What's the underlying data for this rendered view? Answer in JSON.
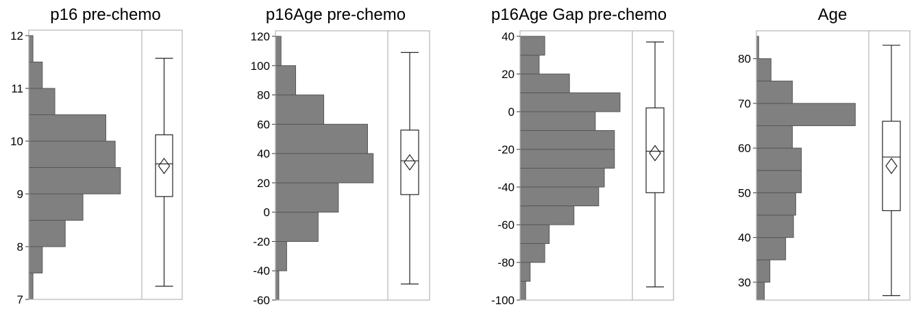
{
  "chart_data": [
    {
      "type": "histogram_boxplot",
      "title": "p16 pre-chemo",
      "ylim": [
        7,
        12
      ],
      "yticks": [
        7,
        8,
        9,
        10,
        11,
        12
      ],
      "ytick_labels": [
        "7",
        "8",
        "9",
        "10",
        "11",
        "12"
      ],
      "bins": [
        {
          "from": 7.0,
          "to": 7.5,
          "width": 0.04
        },
        {
          "from": 7.5,
          "to": 8.0,
          "width": 0.13
        },
        {
          "from": 8.0,
          "to": 8.5,
          "width": 0.35
        },
        {
          "from": 8.5,
          "to": 9.0,
          "width": 0.52
        },
        {
          "from": 9.0,
          "to": 9.5,
          "width": 0.88
        },
        {
          "from": 9.5,
          "to": 10.0,
          "width": 0.83
        },
        {
          "from": 10.0,
          "to": 10.5,
          "width": 0.74
        },
        {
          "from": 10.5,
          "to": 11.0,
          "width": 0.25
        },
        {
          "from": 11.0,
          "to": 11.5,
          "width": 0.13
        },
        {
          "from": 11.5,
          "to": 12.0,
          "width": 0.04
        }
      ],
      "box": {
        "whisker_low": 7.25,
        "q1": 8.95,
        "median": 9.57,
        "q3": 10.12,
        "whisker_high": 11.57,
        "mean": 9.53
      }
    },
    {
      "type": "histogram_boxplot",
      "title": "p16Age pre-chemo",
      "ylim": [
        -60,
        120
      ],
      "yticks": [
        -60,
        -40,
        -20,
        0,
        20,
        40,
        60,
        80,
        100,
        120
      ],
      "ytick_labels": [
        "-60",
        "-40",
        "-20",
        "0",
        "20",
        "40",
        "60",
        "80",
        "100",
        "120"
      ],
      "bins": [
        {
          "from": -60,
          "to": -40,
          "width": 0.03
        },
        {
          "from": -40,
          "to": -20,
          "width": 0.1
        },
        {
          "from": -20,
          "to": 0,
          "width": 0.38
        },
        {
          "from": 0,
          "to": 20,
          "width": 0.56
        },
        {
          "from": 20,
          "to": 40,
          "width": 0.87
        },
        {
          "from": 40,
          "to": 60,
          "width": 0.82
        },
        {
          "from": 60,
          "to": 80,
          "width": 0.43
        },
        {
          "from": 80,
          "to": 100,
          "width": 0.18
        },
        {
          "from": 100,
          "to": 120,
          "width": 0.05
        }
      ],
      "box": {
        "whisker_low": -49,
        "q1": 12,
        "median": 35,
        "q3": 56,
        "whisker_high": 109,
        "mean": 34
      }
    },
    {
      "type": "histogram_boxplot",
      "title": "p16Age Gap pre-chemo",
      "ylim": [
        -100,
        40
      ],
      "yticks": [
        -100,
        -80,
        -60,
        -40,
        -20,
        0,
        20,
        40
      ],
      "ytick_labels": [
        "-100",
        "-80",
        "-60",
        "-40",
        "-20",
        "0",
        "20",
        "40"
      ],
      "bins": [
        {
          "from": -100,
          "to": -90,
          "width": 0.05
        },
        {
          "from": -90,
          "to": -80,
          "width": 0.09
        },
        {
          "from": -80,
          "to": -70,
          "width": 0.22
        },
        {
          "from": -70,
          "to": -60,
          "width": 0.26
        },
        {
          "from": -60,
          "to": -50,
          "width": 0.48
        },
        {
          "from": -50,
          "to": -40,
          "width": 0.7
        },
        {
          "from": -40,
          "to": -30,
          "width": 0.75
        },
        {
          "from": -30,
          "to": -20,
          "width": 0.84
        },
        {
          "from": -20,
          "to": -10,
          "width": 0.84
        },
        {
          "from": -10,
          "to": 0,
          "width": 0.67
        },
        {
          "from": 0,
          "to": 10,
          "width": 0.89
        },
        {
          "from": 10,
          "to": 20,
          "width": 0.44
        },
        {
          "from": 20,
          "to": 30,
          "width": 0.17
        },
        {
          "from": 30,
          "to": 40,
          "width": 0.22
        }
      ],
      "box": {
        "whisker_low": -93,
        "q1": -43,
        "median": -21,
        "q3": 2,
        "whisker_high": 37,
        "mean": -22
      }
    },
    {
      "type": "histogram_boxplot",
      "title": "Age",
      "ylim": [
        26,
        85
      ],
      "yticks": [
        30,
        40,
        50,
        60,
        70,
        80
      ],
      "ytick_labels": [
        "30",
        "40",
        "50",
        "60",
        "70",
        "80"
      ],
      "bins": [
        {
          "from": 26,
          "to": 30,
          "width": 0.07
        },
        {
          "from": 30,
          "to": 35,
          "width": 0.12
        },
        {
          "from": 35,
          "to": 40,
          "width": 0.26
        },
        {
          "from": 40,
          "to": 45,
          "width": 0.33
        },
        {
          "from": 45,
          "to": 50,
          "width": 0.35
        },
        {
          "from": 50,
          "to": 55,
          "width": 0.4
        },
        {
          "from": 55,
          "to": 60,
          "width": 0.4
        },
        {
          "from": 60,
          "to": 65,
          "width": 0.32
        },
        {
          "from": 65,
          "to": 70,
          "width": 0.88
        },
        {
          "from": 70,
          "to": 75,
          "width": 0.32
        },
        {
          "from": 75,
          "to": 80,
          "width": 0.13
        },
        {
          "from": 80,
          "to": 85,
          "width": 0.02
        }
      ],
      "box": {
        "whisker_low": 27,
        "q1": 46,
        "median": 58,
        "q3": 66,
        "whisker_high": 83,
        "mean": 56
      }
    }
  ],
  "colors": {
    "bar_fill": "#808080",
    "bar_stroke": "#555555",
    "frame": "#b4b4b4",
    "box_stroke": "#222222"
  }
}
